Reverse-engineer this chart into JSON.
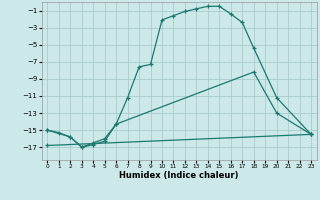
{
  "xlabel": "Humidex (Indice chaleur)",
  "xlim": [
    -0.5,
    23.5
  ],
  "ylim": [
    -18.5,
    0.0
  ],
  "yticks": [
    -17,
    -15,
    -13,
    -11,
    -9,
    -7,
    -5,
    -3,
    -1
  ],
  "xticks": [
    0,
    1,
    2,
    3,
    4,
    5,
    6,
    7,
    8,
    9,
    10,
    11,
    12,
    13,
    14,
    15,
    16,
    17,
    18,
    19,
    20,
    21,
    22,
    23
  ],
  "bg_color": "#cce8e8",
  "grid_color": "#aacccc",
  "line_color": "#1a7a6e",
  "curve1_x": [
    0,
    1,
    2,
    3,
    4,
    5,
    6,
    7,
    8,
    9,
    10,
    11,
    12,
    13,
    14,
    15,
    16,
    17,
    18,
    20,
    23
  ],
  "curve1_y": [
    -15,
    -15.3,
    -15.8,
    -17,
    -16.7,
    -16.3,
    -14.3,
    -11.2,
    -7.6,
    -7.3,
    -2.1,
    -1.6,
    -1.1,
    -0.8,
    -0.5,
    -0.5,
    -1.4,
    -2.4,
    -5.4,
    -11.2,
    -15.5
  ],
  "curve2_x": [
    0,
    2,
    3,
    4,
    5,
    6,
    18,
    20,
    23
  ],
  "curve2_y": [
    -15,
    -15.8,
    -17.0,
    -16.5,
    -16.0,
    -14.3,
    -8.2,
    -13.0,
    -15.5
  ],
  "curve3_x": [
    0,
    23
  ],
  "curve3_y": [
    -16.8,
    -15.5
  ]
}
